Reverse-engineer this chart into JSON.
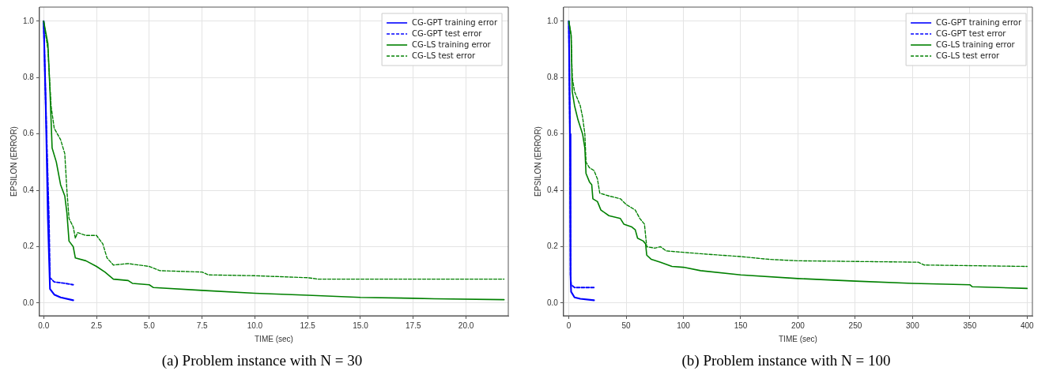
{
  "chart_data": [
    {
      "type": "line",
      "title": "(a) Problem instance with N = 30",
      "xlabel": "TIME (sec)",
      "ylabel": "EPSILON (ERROR)",
      "grid": true,
      "legend": "top right",
      "marker": "none",
      "xlim": [
        -0.2,
        22.0
      ],
      "ylim": [
        -0.045,
        1.05
      ],
      "xticks": [
        {
          "value": 0,
          "label": "0.0"
        },
        {
          "value": 2.5,
          "label": "2.5"
        },
        {
          "value": 5,
          "label": "5.0"
        },
        {
          "value": 7.5,
          "label": "7.5"
        },
        {
          "value": 10,
          "label": "10.0"
        },
        {
          "value": 12.5,
          "label": "12.5"
        },
        {
          "value": 15,
          "label": "15.0"
        },
        {
          "value": 17.5,
          "label": "17.5"
        },
        {
          "value": 20,
          "label": "20.0"
        }
      ],
      "yticks": [
        {
          "value": 0,
          "label": "0.0"
        },
        {
          "value": 0.2,
          "label": "0.2"
        },
        {
          "value": 0.4,
          "label": "0.4"
        },
        {
          "value": 0.6,
          "label": "0.6"
        },
        {
          "value": 0.8,
          "label": "0.8"
        },
        {
          "value": 1,
          "label": "1.0"
        }
      ],
      "series": [
        {
          "name": "CG-GPT training error",
          "color": "#0000ff",
          "line_style": "solid",
          "x": [
            0,
            0.1,
            0.2,
            0.3,
            0.5,
            0.8,
            1.4
          ],
          "values": [
            1,
            0.7,
            0.3,
            0.05,
            0.03,
            0.02,
            0.01
          ]
        },
        {
          "name": "CG-GPT test error",
          "color": "#0000ff",
          "line_style": "dashed",
          "x": [
            0,
            0.1,
            0.25,
            0.3,
            0.5,
            1,
            1.4
          ],
          "values": [
            1,
            0.7,
            0.3,
            0.09,
            0.075,
            0.07,
            0.065
          ]
        },
        {
          "name": "CG-LS training error",
          "color": "#008000",
          "line_style": "solid",
          "x": [
            0,
            0.2,
            0.3,
            0.4,
            0.6,
            0.8,
            1.0,
            1.1,
            1.2,
            1.4,
            1.5,
            2.0,
            2.5,
            2.9,
            3.3,
            4,
            4.2,
            5,
            5.2,
            7.5,
            10,
            12.5,
            15,
            17.5,
            18.5,
            21.8
          ],
          "values": [
            1,
            0.92,
            0.75,
            0.55,
            0.5,
            0.42,
            0.38,
            0.32,
            0.22,
            0.2,
            0.16,
            0.15,
            0.13,
            0.11,
            0.085,
            0.08,
            0.07,
            0.065,
            0.055,
            0.045,
            0.035,
            0.028,
            0.02,
            0.017,
            0.015,
            0.012
          ]
        },
        {
          "name": "CG-LS test error",
          "color": "#008000",
          "line_style": "dashed",
          "x": [
            0,
            0.2,
            0.35,
            0.5,
            0.8,
            1.0,
            1.1,
            1.2,
            1.4,
            1.5,
            1.6,
            2.0,
            2.5,
            2.8,
            3.0,
            3.3,
            4,
            5,
            5.5,
            7.5,
            7.8,
            10,
            12.5,
            13,
            21.8
          ],
          "values": [
            1,
            0.9,
            0.7,
            0.62,
            0.58,
            0.53,
            0.4,
            0.3,
            0.27,
            0.23,
            0.25,
            0.24,
            0.24,
            0.21,
            0.16,
            0.135,
            0.14,
            0.13,
            0.115,
            0.11,
            0.1,
            0.097,
            0.09,
            0.085,
            0.085
          ]
        }
      ]
    },
    {
      "type": "line",
      "title": "(b) Problem instance with N = 100",
      "xlabel": "TIME (sec)",
      "ylabel": "EPSILON (ERROR)",
      "grid": true,
      "legend": "top right",
      "marker": "none",
      "xlim": [
        -4.6,
        404.6
      ],
      "ylim": [
        -0.045,
        1.05
      ],
      "xticks": [
        0,
        50,
        100,
        150,
        200,
        250,
        300,
        350,
        400
      ],
      "yticks": [
        {
          "value": 0,
          "label": "0.0"
        },
        {
          "value": 0.2,
          "label": "0.2"
        },
        {
          "value": 0.4,
          "label": "0.4"
        },
        {
          "value": 0.6,
          "label": "0.6"
        },
        {
          "value": 0.8,
          "label": "0.8"
        },
        {
          "value": 1,
          "label": "1.0"
        }
      ],
      "series": [
        {
          "name": "CG-GPT training error",
          "color": "#0000ff",
          "line_style": "solid",
          "x": [
            0,
            1,
            1.5,
            2,
            5,
            10,
            22
          ],
          "values": [
            1,
            0.6,
            0.1,
            0.04,
            0.02,
            0.015,
            0.01
          ]
        },
        {
          "name": "CG-GPT test error",
          "color": "#0000ff",
          "line_style": "dashed",
          "x": [
            0,
            1,
            1.5,
            2,
            5,
            22
          ],
          "values": [
            1,
            0.6,
            0.1,
            0.065,
            0.055,
            0.055
          ]
        },
        {
          "name": "CG-LS training error",
          "color": "#008000",
          "line_style": "solid",
          "x": [
            0,
            2,
            3,
            5,
            8,
            12,
            14,
            15,
            18,
            20,
            21,
            25,
            28,
            35,
            45,
            48,
            55,
            58,
            60,
            65,
            67,
            68,
            72,
            80,
            90,
            100,
            115,
            150,
            200,
            250,
            300,
            350,
            352,
            400
          ],
          "values": [
            1,
            0.95,
            0.75,
            0.7,
            0.65,
            0.6,
            0.55,
            0.46,
            0.43,
            0.42,
            0.37,
            0.36,
            0.33,
            0.31,
            0.3,
            0.28,
            0.27,
            0.26,
            0.23,
            0.22,
            0.21,
            0.17,
            0.155,
            0.145,
            0.13,
            0.127,
            0.115,
            0.1,
            0.087,
            0.078,
            0.07,
            0.065,
            0.058,
            0.052
          ]
        },
        {
          "name": "CG-LS test error",
          "color": "#008000",
          "line_style": "dashed",
          "x": [
            0,
            2,
            3,
            5,
            10,
            12,
            14,
            15,
            18,
            22,
            25,
            27,
            35,
            45,
            50,
            58,
            62,
            66,
            68,
            75,
            80,
            85,
            100,
            115,
            150,
            175,
            200,
            305,
            310,
            400
          ],
          "values": [
            1,
            0.95,
            0.8,
            0.75,
            0.7,
            0.66,
            0.6,
            0.5,
            0.48,
            0.47,
            0.44,
            0.39,
            0.38,
            0.37,
            0.35,
            0.33,
            0.3,
            0.28,
            0.2,
            0.195,
            0.2,
            0.185,
            0.18,
            0.175,
            0.165,
            0.155,
            0.15,
            0.145,
            0.135,
            0.13
          ]
        }
      ]
    }
  ]
}
